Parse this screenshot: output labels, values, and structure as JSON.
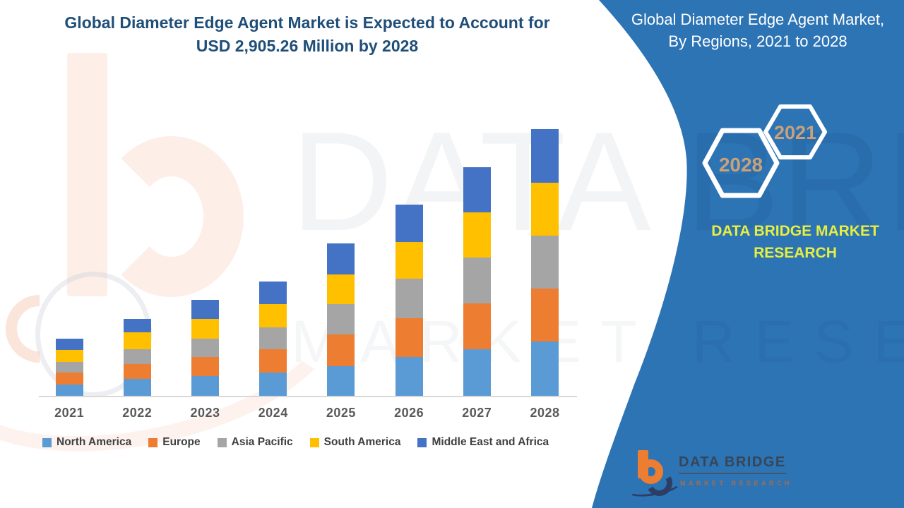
{
  "chart_title": {
    "line1": "Global Diameter Edge Agent Market is Expected to Account for",
    "line2": "USD 2,905.26 Million by 2028",
    "color": "#1f4e79"
  },
  "panel": {
    "bg_color": "#2d74b5",
    "title_line1": "Global Diameter Edge Agent Market,",
    "title_line2": "By Regions, 2021 to 2028",
    "hexagons": [
      {
        "label": "2028"
      },
      {
        "label": "2021"
      }
    ],
    "hexagon_label_color": "#c9a178",
    "brand_text": "DATA BRIDGE MARKET RESEARCH",
    "brand_color": "#e7ef3f",
    "logo": {
      "name": "DATA BRIDGE",
      "tagline": "MARKET RESEARCH"
    }
  },
  "watermarks": {
    "big_text": "DATA BRIDGE",
    "sub_text": "MARKET RESEARCH"
  },
  "chart_data": {
    "type": "bar",
    "stacked": true,
    "title": "Global Diameter Edge Agent Market is Expected to Account for USD 2,905.26 Million by 2028",
    "unit": "USD Million",
    "categories": [
      "2021",
      "2022",
      "2023",
      "2024",
      "2025",
      "2026",
      "2027",
      "2028"
    ],
    "series": [
      {
        "name": "North America",
        "color": "#5b9bd5",
        "values": [
          123,
          184,
          215,
          254,
          323,
          423,
          507,
          592
        ]
      },
      {
        "name": "Europe",
        "color": "#ed7d31",
        "values": [
          131,
          161,
          208,
          254,
          346,
          423,
          500,
          576
        ]
      },
      {
        "name": "Asia Pacific",
        "color": "#a5a5a5",
        "values": [
          115,
          161,
          200,
          238,
          330,
          430,
          500,
          577
        ]
      },
      {
        "name": "South America",
        "color": "#ffc000",
        "values": [
          131,
          184,
          215,
          254,
          323,
          400,
          492,
          576
        ]
      },
      {
        "name": "Middle East and Africa",
        "color": "#4472c4",
        "values": [
          123,
          146,
          208,
          246,
          338,
          407,
          492,
          584.26
        ]
      }
    ],
    "totals": [
      623,
      836,
      1046,
      1246,
      1660,
      2083,
      2491,
      2905.26
    ],
    "ylim": [
      0,
      2905.26
    ],
    "y_axis_visible": false,
    "gridlines": false,
    "legend_position": "bottom",
    "xlabel": "",
    "ylabel": ""
  },
  "legend_items": [
    "North America",
    "Europe",
    "Asia Pacific",
    "South America",
    "Middle East and Africa"
  ]
}
